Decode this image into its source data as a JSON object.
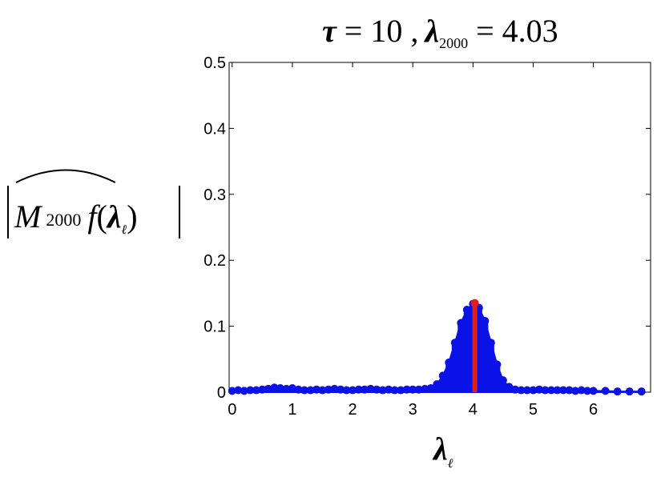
{
  "chart_data": {
    "type": "scatter",
    "title": {
      "tau_symbol": "τ",
      "tau_eq": " = 10 ,",
      "lambda_symbol": "λ",
      "lambda_sub": "2000",
      "lambda_eq": " = 4.03"
    },
    "xlabel": {
      "symbol": "λ",
      "sub": "ℓ"
    },
    "ylabel": {
      "M": "M",
      "M_sub": "2000",
      "f_text": "f",
      "paren_open": "(",
      "lambda": "λ",
      "lambda_sub": "ℓ",
      "paren_close": ")"
    },
    "xlim": [
      -0.05,
      6.95
    ],
    "ylim": [
      0,
      0.5
    ],
    "xticks": [
      0,
      1,
      2,
      3,
      4,
      5,
      6
    ],
    "yticks": [
      0,
      0.1,
      0.2,
      0.3,
      0.4,
      0.5
    ],
    "ytick_labels": [
      "0",
      "0.1",
      "0.2",
      "0.3",
      "0.4",
      "0.5"
    ],
    "grid": false,
    "colors": {
      "series": "#0a12e8",
      "highlight": "#e0201a",
      "axes": "#000000"
    },
    "series": [
      {
        "x": [
          0.0,
          0.1,
          0.2,
          0.3,
          0.4,
          0.5,
          0.6,
          0.7,
          0.8,
          0.9,
          1.0,
          1.1,
          1.2,
          1.3,
          1.4,
          1.5,
          1.6,
          1.7,
          1.8,
          1.9,
          2.0,
          2.1,
          2.2,
          2.3,
          2.4,
          2.5,
          2.6,
          2.7,
          2.8,
          2.9,
          3.0,
          3.1,
          3.2,
          3.3,
          3.4,
          3.5,
          3.6,
          3.7,
          3.8,
          3.9,
          4.0,
          4.03,
          4.1,
          4.2,
          4.3,
          4.4,
          4.5,
          4.6,
          4.7,
          4.8,
          4.9,
          5.0,
          5.1,
          5.2,
          5.3,
          5.4,
          5.5,
          5.6,
          5.7,
          5.8,
          5.9,
          6.0,
          6.2,
          6.4,
          6.6,
          6.8
        ],
        "y": [
          0.002,
          0.003,
          0.002,
          0.003,
          0.003,
          0.004,
          0.005,
          0.007,
          0.006,
          0.005,
          0.006,
          0.004,
          0.003,
          0.003,
          0.004,
          0.003,
          0.004,
          0.005,
          0.004,
          0.003,
          0.003,
          0.004,
          0.004,
          0.005,
          0.004,
          0.003,
          0.004,
          0.003,
          0.003,
          0.004,
          0.004,
          0.004,
          0.005,
          0.006,
          0.012,
          0.025,
          0.045,
          0.075,
          0.105,
          0.125,
          0.134,
          0.135,
          0.128,
          0.108,
          0.075,
          0.042,
          0.018,
          0.008,
          0.004,
          0.003,
          0.003,
          0.003,
          0.004,
          0.003,
          0.003,
          0.003,
          0.003,
          0.003,
          0.002,
          0.003,
          0.002,
          0.002,
          0.002,
          0.001,
          0.001,
          0.001
        ]
      }
    ],
    "highlight": {
      "x": 4.03,
      "y": 0.135
    }
  }
}
